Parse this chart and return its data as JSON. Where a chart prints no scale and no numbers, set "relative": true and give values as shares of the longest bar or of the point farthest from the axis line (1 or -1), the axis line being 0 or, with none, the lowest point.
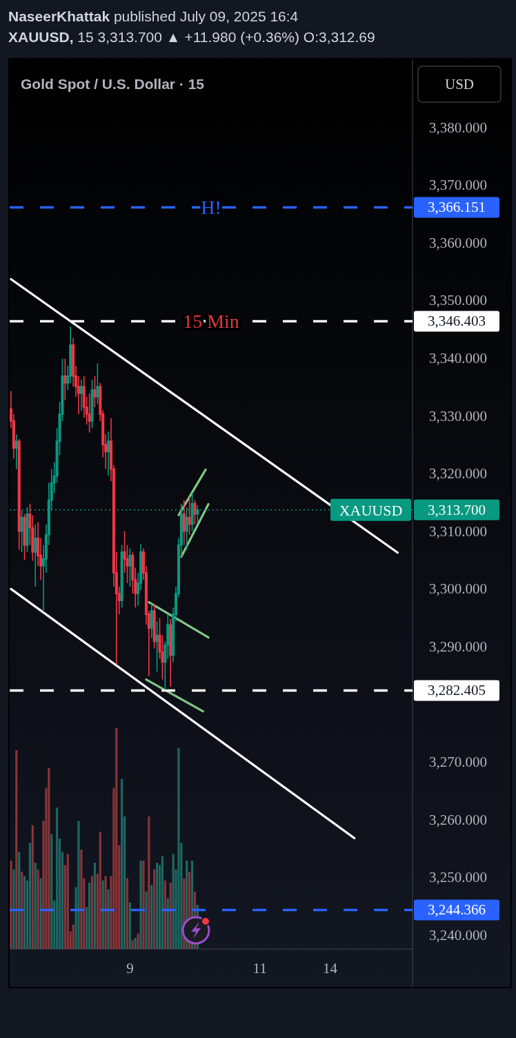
{
  "chart_data": [
    {
      "type": "candlestick",
      "title": "Gold Spot / U.S. Dollar · 15",
      "ylabel": "USD",
      "annotations": [
        "NaseerKhattak published July 09, 2025 16:4",
        "XAUUSD, 15 3,313.700 ▲ +11.980 (+0.36%) O:3,312.69",
        {
          "text": "15 Min",
          "y": 3346.403
        }
      ],
      "categories": [
        null,
        null,
        null,
        null,
        null,
        null,
        null,
        null,
        null,
        null,
        null,
        null,
        null,
        null,
        null,
        null,
        null,
        null,
        null,
        null,
        null,
        null,
        null,
        null,
        null,
        null,
        null,
        null,
        null,
        null,
        null,
        null,
        null,
        null,
        null,
        null,
        null,
        null,
        null,
        null,
        null,
        null,
        null,
        null,
        "9",
        null,
        null,
        null,
        null,
        null,
        null,
        null,
        null,
        null,
        null,
        null,
        null,
        null,
        null,
        null,
        null,
        null,
        null,
        null,
        null,
        null,
        null,
        null,
        null,
        null,
        null,
        null,
        null,
        null,
        null,
        null,
        null,
        null,
        null,
        null,
        null,
        null,
        null,
        null,
        null,
        null,
        null,
        null,
        null,
        null,
        null,
        null,
        "11",
        null,
        null,
        null,
        null,
        null,
        null,
        null,
        null,
        null,
        null,
        null,
        null,
        null,
        null,
        null,
        null,
        null,
        null,
        null,
        null,
        null,
        null,
        null,
        null,
        null,
        "14",
        null,
        null,
        null,
        null,
        null,
        null,
        null,
        null,
        null,
        null,
        null,
        null,
        null,
        null,
        null,
        null,
        null,
        null,
        null,
        null,
        null,
        null,
        null,
        null,
        null,
        null,
        null,
        null,
        null,
        null
      ],
      "ohlc": [
        [
          3331.2,
          3334.3,
          3327.9,
          3329.1
        ],
        [
          3329.1,
          3330.3,
          3322.6,
          3324.4
        ],
        [
          3324.4,
          3326.8,
          3320.8,
          3325.6
        ],
        [
          3325.6,
          3326.0,
          3306.8,
          3310.0
        ],
        [
          3310.0,
          3313.6,
          3306.4,
          3312.4
        ],
        [
          3312.4,
          3313.0,
          3305.0,
          3307.6
        ],
        [
          3307.6,
          3314.2,
          3306.4,
          3313.0
        ],
        [
          3313.0,
          3314.8,
          3307.6,
          3310.6
        ],
        [
          3310.6,
          3312.8,
          3304.9,
          3306.4
        ],
        [
          3306.4,
          3311.2,
          3300.4,
          3308.8
        ],
        [
          3308.8,
          3311.6,
          3304.0,
          3305.8
        ],
        [
          3305.8,
          3308.8,
          3301.6,
          3304.0
        ],
        [
          3304.0,
          3307.6,
          3296.0,
          3305.2
        ],
        [
          3305.2,
          3311.2,
          3302.8,
          3309.4
        ],
        [
          3309.4,
          3318.4,
          3307.6,
          3315.4
        ],
        [
          3315.4,
          3320.8,
          3313.6,
          3318.4
        ],
        [
          3318.4,
          3322.0,
          3316.6,
          3319.6
        ],
        [
          3319.6,
          3327.9,
          3318.4,
          3325.6
        ],
        [
          3325.6,
          3332.4,
          3323.2,
          3330.3
        ],
        [
          3330.3,
          3339.9,
          3329.1,
          3336.9
        ],
        [
          3336.9,
          3339.9,
          3332.7,
          3335.7
        ],
        [
          3335.7,
          3338.7,
          3334.5,
          3336.9
        ],
        [
          3336.9,
          3345.5,
          3335.7,
          3342.3
        ],
        [
          3342.3,
          3343.5,
          3335.1,
          3336.9
        ],
        [
          3336.9,
          3338.7,
          3333.3,
          3335.1
        ],
        [
          3335.1,
          3336.9,
          3330.3,
          3333.9
        ],
        [
          3333.9,
          3336.3,
          3330.9,
          3335.1
        ],
        [
          3335.1,
          3336.9,
          3329.7,
          3331.5
        ],
        [
          3331.5,
          3333.3,
          3328.5,
          3330.3
        ],
        [
          3330.3,
          3333.9,
          3327.1,
          3329.1
        ],
        [
          3329.1,
          3336.3,
          3327.9,
          3334.5
        ],
        [
          3334.5,
          3336.9,
          3331.5,
          3333.3
        ],
        [
          3333.3,
          3339.1,
          3332.1,
          3335.1
        ],
        [
          3335.1,
          3335.7,
          3329.1,
          3330.3
        ],
        [
          3330.3,
          3331.0,
          3322.8,
          3325.0
        ],
        [
          3325.0,
          3326.8,
          3320.8,
          3323.8
        ],
        [
          3323.8,
          3327.3,
          3319.6,
          3325.6
        ],
        [
          3325.6,
          3329.6,
          3318.7,
          3320.8
        ],
        [
          3320.8,
          3321.5,
          3300.4,
          3302.8
        ],
        [
          3302.8,
          3306.4,
          3286.9,
          3299.2
        ],
        [
          3299.2,
          3300.4,
          3295.6,
          3298.0
        ],
        [
          3298.0,
          3307.6,
          3296.8,
          3306.4
        ],
        [
          3306.4,
          3310.0,
          3302.8,
          3305.2
        ],
        [
          3305.2,
          3307.6,
          3301.0,
          3304.0
        ],
        [
          3304.0,
          3307.0,
          3300.4,
          3305.8
        ],
        [
          3305.8,
          3306.4,
          3299.2,
          3301.6
        ],
        [
          3301.6,
          3303.7,
          3296.8,
          3299.2
        ],
        [
          3299.2,
          3302.8,
          3297.1,
          3301.0
        ],
        [
          3301.0,
          3307.8,
          3299.8,
          3306.4
        ],
        [
          3306.4,
          3307.0,
          3301.6,
          3302.8
        ],
        [
          3302.8,
          3304.0,
          3293.8,
          3295.6
        ],
        [
          3295.6,
          3296.2,
          3284.9,
          3293.2
        ],
        [
          3293.2,
          3297.4,
          3291.5,
          3296.2
        ],
        [
          3296.2,
          3297.4,
          3289.7,
          3290.9
        ],
        [
          3290.9,
          3294.4,
          3285.7,
          3292.0
        ],
        [
          3292.0,
          3295.0,
          3287.9,
          3289.1
        ],
        [
          3289.1,
          3292.0,
          3284.3,
          3287.3
        ],
        [
          3287.3,
          3290.9,
          3282.5,
          3290.3
        ],
        [
          3290.3,
          3295.6,
          3287.9,
          3293.8
        ],
        [
          3293.8,
          3294.8,
          3283.1,
          3288.5
        ],
        [
          3288.5,
          3296.8,
          3287.3,
          3295.6
        ],
        [
          3295.6,
          3300.4,
          3294.4,
          3299.2
        ],
        [
          3299.2,
          3308.8,
          3298.6,
          3307.6
        ],
        [
          3307.6,
          3314.8,
          3305.6,
          3313.0
        ],
        [
          3313.0,
          3315.4,
          3307.6,
          3310.0
        ],
        [
          3310.0,
          3314.2,
          3306.8,
          3312.4
        ],
        [
          3312.4,
          3316.0,
          3309.4,
          3311.2
        ],
        [
          3311.2,
          3316.6,
          3310.0,
          3314.8
        ],
        [
          3314.8,
          3315.4,
          3311.2,
          3313.0
        ],
        [
          3313.0,
          3314.5,
          3311.5,
          3313.7
        ],
        null,
        null,
        null,
        null,
        null,
        null,
        null,
        null,
        null,
        null,
        null,
        null,
        null,
        null,
        null,
        null,
        null,
        null,
        null,
        null,
        null,
        null,
        null,
        null,
        null,
        null,
        null,
        null,
        null,
        null,
        null,
        null,
        null,
        null,
        null,
        null,
        null,
        null,
        null,
        null,
        null,
        null,
        null,
        null,
        null,
        null,
        null,
        null,
        null,
        null,
        null,
        null,
        null,
        null,
        null,
        null,
        null,
        null,
        null,
        null,
        null,
        null,
        null,
        null,
        null,
        null,
        null,
        null,
        null,
        null,
        null,
        null,
        null,
        null,
        null,
        null,
        null,
        null,
        null
      ],
      "colors": [
        "#f23645",
        "#f23645",
        "#089981",
        "#f23645",
        "#089981",
        "#f23645",
        "#089981",
        "#f23645",
        "#f23645",
        "#089981",
        "#f23645",
        "#f23645",
        "#089981",
        "#089981",
        "#089981",
        "#089981",
        "#089981",
        "#089981",
        "#089981",
        "#089981",
        "#f23645",
        "#089981",
        "#089981",
        "#f23645",
        "#f23645",
        "#f23645",
        "#089981",
        "#f23645",
        "#f23645",
        "#f23645",
        "#089981",
        "#f23645",
        "#089981",
        "#f23645",
        "#f23645",
        "#f23645",
        "#089981",
        "#f23645",
        "#f23645",
        "#f23645",
        "#f23645",
        "#089981",
        "#f23645",
        "#f23645",
        "#089981",
        "#f23645",
        "#f23645",
        "#089981",
        "#089981",
        "#f23645",
        "#f23645",
        "#f23645",
        "#089981",
        "#f23645",
        "#089981",
        "#f23645",
        "#f23645",
        "#089981",
        "#089981",
        "#f23645",
        "#089981",
        "#089981",
        "#089981",
        "#089981",
        "#f23645",
        "#089981",
        "#f23645",
        "#089981",
        "#f23645",
        "#089981",
        null,
        null,
        null,
        null,
        null,
        null,
        null,
        null,
        null,
        null,
        null,
        null,
        null,
        null,
        null,
        null,
        null,
        null,
        null,
        null,
        null,
        null,
        null,
        null,
        null,
        null,
        null,
        null,
        null,
        null,
        null,
        null,
        null,
        null,
        null,
        null,
        null,
        null,
        null,
        null,
        null,
        null,
        null,
        null,
        null,
        null,
        null,
        null,
        null,
        null,
        null,
        null,
        null,
        null,
        null,
        null,
        null,
        null,
        null,
        null,
        null,
        null,
        null,
        null,
        null,
        null,
        null,
        null,
        null,
        null,
        null,
        null,
        null,
        null,
        null,
        null,
        null,
        null,
        null
      ],
      "series": [
        {
          "type": "line",
          "color": "#ffffff",
          "values": [
            3353.7,
            null,
            null,
            null,
            null,
            null,
            null,
            null,
            null,
            null,
            null,
            null,
            null,
            null,
            null,
            null,
            null,
            null,
            null,
            null,
            null,
            null,
            null,
            null,
            null,
            null,
            null,
            null,
            null,
            null,
            null,
            null,
            null,
            null,
            null,
            null,
            null,
            null,
            null,
            null,
            null,
            null,
            null,
            null,
            null,
            null,
            null,
            null,
            null,
            null,
            null,
            null,
            null,
            null,
            null,
            null,
            null,
            null,
            null,
            null,
            null,
            null,
            null,
            null,
            null,
            null,
            null,
            null,
            null,
            null,
            null,
            null,
            null,
            null,
            null,
            null,
            null,
            null,
            null,
            null,
            null,
            null,
            null,
            null,
            null,
            null,
            null,
            null,
            null,
            null,
            null,
            null,
            null,
            null,
            null,
            null,
            null,
            null,
            null,
            null,
            null,
            null,
            null,
            null,
            null,
            null,
            null,
            null,
            null,
            null,
            null,
            null,
            null,
            null,
            null,
            null,
            null,
            null,
            null,
            null,
            null,
            null,
            null,
            null,
            null,
            null,
            null,
            null,
            null,
            null,
            null,
            null,
            null,
            null,
            null,
            null,
            null,
            null,
            null,
            null,
            null,
            null,
            null,
            3306.3,
            null,
            null,
            null,
            null,
            null
          ]
        },
        {
          "type": "line",
          "color": "#ffffff",
          "values": [
            3300.0,
            null,
            null,
            null,
            null,
            null,
            null,
            null,
            null,
            null,
            null,
            null,
            null,
            null,
            null,
            null,
            null,
            null,
            null,
            null,
            null,
            null,
            null,
            null,
            null,
            null,
            null,
            null,
            null,
            null,
            null,
            null,
            null,
            null,
            null,
            null,
            null,
            null,
            null,
            null,
            null,
            null,
            null,
            null,
            null,
            null,
            null,
            null,
            null,
            null,
            null,
            null,
            null,
            null,
            null,
            null,
            null,
            null,
            null,
            null,
            null,
            null,
            null,
            null,
            null,
            null,
            null,
            null,
            null,
            null,
            null,
            null,
            null,
            null,
            null,
            null,
            null,
            null,
            null,
            null,
            null,
            null,
            null,
            null,
            null,
            null,
            null,
            null,
            null,
            null,
            null,
            null,
            null,
            null,
            null,
            null,
            null,
            null,
            null,
            null,
            null,
            null,
            null,
            null,
            null,
            null,
            null,
            null,
            null,
            null,
            null,
            null,
            null,
            null,
            null,
            null,
            null,
            null,
            null,
            null,
            null,
            null,
            null,
            null,
            null,
            null,
            null,
            3256.8,
            null,
            null,
            null,
            null,
            null,
            null,
            null,
            null,
            null,
            null,
            null,
            null,
            null,
            null,
            null,
            null,
            null,
            null,
            null,
            null,
            null
          ]
        },
        {
          "type": "line",
          "color": "#81c784",
          "values": [
            null,
            null,
            null,
            null,
            null,
            null,
            null,
            null,
            null,
            null,
            null,
            null,
            null,
            null,
            null,
            null,
            null,
            null,
            null,
            null,
            null,
            null,
            null,
            null,
            null,
            null,
            null,
            null,
            null,
            null,
            null,
            null,
            null,
            null,
            null,
            null,
            null,
            null,
            null,
            null,
            null,
            null,
            null,
            null,
            null,
            null,
            null,
            null,
            null,
            null,
            null,
            3297.7,
            null,
            null,
            null,
            null,
            null,
            null,
            null,
            null,
            null,
            null,
            null,
            null,
            null,
            null,
            null,
            null,
            null,
            null,
            null,
            null,
            null,
            3291.6,
            null,
            null,
            null,
            null,
            null,
            null,
            null,
            null,
            null,
            null,
            null,
            null,
            null,
            null,
            null,
            null,
            null,
            null,
            null,
            null,
            null,
            null,
            null,
            null,
            null,
            null,
            null,
            null,
            null,
            null,
            null,
            null,
            null,
            null,
            null,
            null,
            null,
            null,
            null,
            null,
            null,
            null,
            null,
            null,
            null,
            null,
            null,
            null,
            null,
            null,
            null,
            null,
            null,
            null,
            null,
            null,
            null,
            null,
            null,
            null,
            null,
            null,
            null,
            null,
            null,
            null,
            null,
            null,
            null,
            null,
            null,
            null,
            null,
            null,
            null
          ]
        },
        {
          "type": "line",
          "color": "#81c784",
          "values": [
            null,
            null,
            null,
            null,
            null,
            null,
            null,
            null,
            null,
            null,
            null,
            null,
            null,
            null,
            null,
            null,
            null,
            null,
            null,
            null,
            null,
            null,
            null,
            null,
            null,
            null,
            null,
            null,
            null,
            null,
            null,
            null,
            null,
            null,
            null,
            null,
            null,
            null,
            null,
            null,
            null,
            null,
            null,
            null,
            null,
            null,
            null,
            null,
            null,
            null,
            3284.3,
            null,
            null,
            null,
            null,
            null,
            null,
            null,
            null,
            null,
            null,
            null,
            null,
            null,
            null,
            null,
            null,
            null,
            null,
            null,
            null,
            3278.8,
            null,
            null,
            null,
            null,
            null,
            null,
            null,
            null,
            null,
            null,
            null,
            null,
            null,
            null,
            null,
            null,
            null,
            null,
            null,
            null,
            null,
            null,
            null,
            null,
            null,
            null,
            null,
            null,
            null,
            null,
            null,
            null,
            null,
            null,
            null,
            null,
            null,
            null,
            null,
            null,
            null,
            null,
            null,
            null,
            null,
            null,
            null,
            null,
            null,
            null,
            null,
            null,
            null,
            null,
            null,
            null,
            null,
            null,
            null,
            null,
            null,
            null,
            null,
            null,
            null,
            null,
            null,
            null,
            null,
            null,
            null,
            null,
            null,
            null,
            null,
            null,
            null
          ]
        },
        {
          "type": "line",
          "color": "#81c784",
          "values": [
            null,
            null,
            null,
            null,
            null,
            null,
            null,
            null,
            null,
            null,
            null,
            null,
            null,
            null,
            null,
            null,
            null,
            null,
            null,
            null,
            null,
            null,
            null,
            null,
            null,
            null,
            null,
            null,
            null,
            null,
            null,
            null,
            null,
            null,
            null,
            null,
            null,
            null,
            null,
            null,
            null,
            null,
            null,
            null,
            null,
            null,
            null,
            null,
            null,
            null,
            null,
            null,
            null,
            null,
            null,
            null,
            null,
            null,
            null,
            null,
            null,
            null,
            3312.8,
            null,
            null,
            null,
            null,
            null,
            null,
            null,
            null,
            null,
            3320.7,
            null,
            null,
            null,
            null,
            null,
            null,
            null,
            null,
            null,
            null,
            null,
            null,
            null,
            null,
            null,
            null,
            null,
            null,
            null,
            null,
            null,
            null,
            null,
            null,
            null,
            null,
            null,
            null,
            null,
            null,
            null,
            null,
            null,
            null,
            null,
            null,
            null,
            null,
            null,
            null,
            null,
            null,
            null,
            null,
            null,
            null,
            null,
            null,
            null,
            null,
            null,
            null,
            null,
            null,
            null,
            null,
            null,
            null,
            null,
            null,
            null,
            null,
            null,
            null,
            null,
            null,
            null,
            null,
            null,
            null,
            null,
            null,
            null,
            null,
            null,
            null
          ]
        },
        {
          "type": "line",
          "color": "#81c784",
          "values": [
            null,
            null,
            null,
            null,
            null,
            null,
            null,
            null,
            null,
            null,
            null,
            null,
            null,
            null,
            null,
            null,
            null,
            null,
            null,
            null,
            null,
            null,
            null,
            null,
            null,
            null,
            null,
            null,
            null,
            null,
            null,
            null,
            null,
            null,
            null,
            null,
            null,
            null,
            null,
            null,
            null,
            null,
            null,
            null,
            null,
            null,
            null,
            null,
            null,
            null,
            null,
            null,
            null,
            null,
            null,
            null,
            null,
            null,
            null,
            null,
            null,
            null,
            null,
            3305.6,
            null,
            null,
            null,
            null,
            null,
            null,
            null,
            null,
            null,
            3314.7,
            null,
            null,
            null,
            null,
            null,
            null,
            null,
            null,
            null,
            null,
            null,
            null,
            null,
            null,
            null,
            null,
            null,
            null,
            null,
            null,
            null,
            null,
            null,
            null,
            null,
            null,
            null,
            null,
            null,
            null,
            null,
            null,
            null,
            null,
            null,
            null,
            null,
            null,
            null,
            null,
            null,
            null,
            null,
            null,
            null,
            null,
            null,
            null,
            null,
            null,
            null,
            null,
            null,
            null,
            null,
            null,
            null,
            null,
            null,
            null,
            null,
            null,
            null,
            null,
            null,
            null,
            null,
            null,
            null,
            null,
            null,
            null,
            null,
            null,
            null
          ]
        }
      ],
      "ylim": [
        3237.6,
        3391.8
      ],
      "yticks": [
        {
          "value": 3240,
          "label": "3,240.000"
        },
        {
          "value": 3244.366,
          "label": "3,244.366"
        },
        {
          "value": 3250,
          "label": "3,250.000"
        },
        {
          "value": 3260,
          "label": "3,260.000"
        },
        {
          "value": 3270,
          "label": "3,270.000"
        },
        {
          "value": 3282.405,
          "label": "3,282.405"
        },
        {
          "value": 3290,
          "label": "3,290.000"
        },
        {
          "value": 3300,
          "label": "3,300.000"
        },
        {
          "value": 3310,
          "label": "3,310.000"
        },
        {
          "value": 3313.7,
          "label": "3,313.700"
        },
        {
          "value": 3320,
          "label": "3,320.000"
        },
        {
          "value": 3330,
          "label": "3,330.000"
        },
        {
          "value": 3340,
          "label": "3,340.000"
        },
        {
          "value": 3346.403,
          "label": "3,346.403"
        },
        {
          "value": 3350,
          "label": "3,350.000"
        },
        {
          "value": 3360,
          "label": "3,360.000"
        },
        {
          "value": 3366.151,
          "label": "3,366.151"
        },
        {
          "value": 3370,
          "label": "3,370.000"
        },
        {
          "value": 3380,
          "label": "3,380.000"
        }
      ],
      "ref_lines": [
        {
          "axis": "y",
          "value": 3366.151,
          "label": "H!",
          "color": "#2962ff",
          "line_style": "dashed"
        },
        {
          "axis": "y",
          "value": 3346.403,
          "color": "#ffffff",
          "line_style": "dashed"
        },
        {
          "axis": "y",
          "value": 3313.7,
          "label": "XAUUSD",
          "color": "#089981",
          "line_style": "dotted"
        },
        {
          "axis": "y",
          "value": 3282.405,
          "color": "#ffffff",
          "line_style": "dashed"
        },
        {
          "axis": "y",
          "value": 3244.366,
          "color": "#2962ff",
          "line_style": "dashed"
        }
      ]
    },
    {
      "type": "bar",
      "relative": true,
      "tick_labels": false,
      "categories": [
        null,
        null,
        null,
        null,
        null,
        null,
        null,
        null,
        null,
        null,
        null,
        null,
        null,
        null,
        null,
        null,
        null,
        null,
        null,
        null,
        null,
        null,
        null,
        null,
        null,
        null,
        null,
        null,
        null,
        null,
        null,
        null,
        null,
        null,
        null,
        null,
        null,
        null,
        null,
        null,
        null,
        null,
        null,
        null,
        "9",
        null,
        null,
        null,
        null,
        null,
        null,
        null,
        null,
        null,
        null,
        null,
        null,
        null,
        null,
        null,
        null,
        null,
        null,
        null,
        null,
        null,
        null,
        null,
        null,
        null,
        null,
        null,
        null,
        null,
        null,
        null,
        null,
        null,
        null,
        null,
        null,
        null,
        null,
        null,
        null,
        null,
        null,
        null,
        null,
        null,
        null,
        null,
        "11",
        null,
        null,
        null,
        null,
        null,
        null,
        null,
        null,
        null,
        null,
        null,
        null,
        null,
        null,
        null,
        null,
        null,
        null,
        null,
        null,
        null,
        null,
        null,
        null,
        null,
        "14",
        null,
        null,
        null,
        null,
        null,
        null,
        null,
        null,
        null,
        null,
        null,
        null,
        null,
        null,
        null,
        null,
        null,
        null,
        null,
        null,
        null,
        null,
        null,
        null,
        null,
        null,
        null,
        null,
        null,
        null
      ],
      "values": [
        0.4,
        0.36,
        0.9,
        0.44,
        0.35,
        0.33,
        0.31,
        0.48,
        0.56,
        0.39,
        0.36,
        0.32,
        0.58,
        0.73,
        0.82,
        0.52,
        0.22,
        0.64,
        0.5,
        0.44,
        0.38,
        0.43,
        0.08,
        0.11,
        0.28,
        0.58,
        0.45,
        0.32,
        0.19,
        0.3,
        0.33,
        0.39,
        0.34,
        0.53,
        0.31,
        0.33,
        0.27,
        0.33,
        0.73,
        1,
        0.47,
        0.77,
        0.6,
        0.32,
        0.21,
        0.04,
        0.05,
        0.07,
        0.4,
        0.4,
        0.26,
        0.6,
        0.29,
        0.36,
        0.39,
        0.38,
        0.42,
        0.31,
        0.23,
        0.3,
        0.43,
        0.36,
        0.91,
        0.48,
        0.32,
        0.4,
        0.35,
        0.4,
        0.26,
        0.2,
        null,
        null,
        null,
        null,
        null,
        null,
        null,
        null,
        null,
        null,
        null,
        null,
        null,
        null,
        null,
        null,
        null,
        null,
        null,
        null,
        null,
        null,
        null,
        null,
        null,
        null,
        null,
        null,
        null,
        null,
        null,
        null,
        null,
        null,
        null,
        null,
        null,
        null,
        null,
        null,
        null,
        null,
        null,
        null,
        null,
        null,
        null,
        null,
        null,
        null,
        null,
        null,
        null,
        null,
        null,
        null,
        null,
        null,
        null,
        null,
        null,
        null,
        null,
        null,
        null,
        null,
        null,
        null,
        null,
        null,
        null,
        null,
        null,
        null,
        null,
        null,
        null,
        null,
        null
      ],
      "colors": [
        "#8a3539",
        "#1f6862",
        "#8a3539",
        "#1f6862",
        "#8a3539",
        "#1f6862",
        "#1f6862",
        "#1f6862",
        "#8a3539",
        "#1f6862",
        "#8a3539",
        "#1f6862",
        "#8a3539",
        "#8a3539",
        "#8a3539",
        "#1f6862",
        "#1f6862",
        "#1f6862",
        "#1f6862",
        "#1f6862",
        "#8a3539",
        "#8a3539",
        "#8a3539",
        "#8a3539",
        "#1f6862",
        "#1f6862",
        "#8a3539",
        "#8a3539",
        "#1f6862",
        "#1f6862",
        "#8a3539",
        "#1f6862",
        "#8a3539",
        "#8a3539",
        "#1f6862",
        "#8a3539",
        "#1f6862",
        "#8a3539",
        "#8a3539",
        "#8a3539",
        "#8a3539",
        "#1f6862",
        "#1f6862",
        "#8a3539",
        "#1f6862",
        "#8a3539",
        "#1f6862",
        "#8a3539",
        "#1f6862",
        "#8a3539",
        "#1f6862",
        "#8a3539",
        "#1f6862",
        "#8a3539",
        "#1f6862",
        "#1f6862",
        "#1f6862",
        "#8a3539",
        "#1f6862",
        "#8a3539",
        "#1f6862",
        "#1f6862",
        "#1f6862",
        "#1f6862",
        "#8a3539",
        "#1f6862",
        "#8a3539",
        "#1f6862",
        "#8a3539",
        "#1f6862",
        null,
        null,
        null,
        null,
        null,
        null,
        null,
        null,
        null,
        null,
        null,
        null,
        null,
        null,
        null,
        null,
        null,
        null,
        null,
        null,
        null,
        null,
        null,
        null,
        null,
        null,
        null,
        null,
        null,
        null,
        null,
        null,
        null,
        null,
        null,
        null,
        null,
        null,
        null,
        null,
        null,
        null,
        null,
        null,
        null,
        null,
        null,
        null,
        null,
        null,
        null,
        null,
        null,
        null,
        null,
        null,
        null,
        null,
        null,
        null,
        null,
        null,
        null,
        null,
        null,
        null,
        null,
        null,
        null,
        null,
        null,
        null,
        null,
        null,
        null,
        null,
        null,
        null,
        null
      ]
    }
  ]
}
